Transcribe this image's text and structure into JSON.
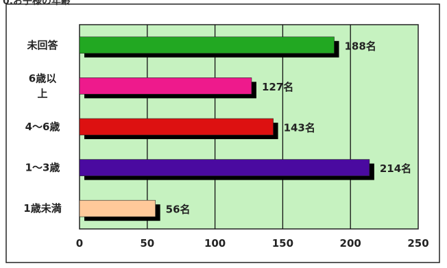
{
  "header": {
    "text": "0.お子様の年齢"
  },
  "chart_data": {
    "type": "bar",
    "orientation": "horizontal",
    "categories": [
      {
        "label": "未回答",
        "lines": [
          "未回答"
        ]
      },
      {
        "label": "6歳以上",
        "lines": [
          "6歳以",
          "上"
        ]
      },
      {
        "label": "4〜6歳",
        "lines": [
          "4〜6歳"
        ]
      },
      {
        "label": "1〜3歳",
        "lines": [
          "1〜3歳"
        ]
      },
      {
        "label": "1歳未満",
        "lines": [
          "1歳未満"
        ]
      }
    ],
    "values": [
      188,
      127,
      143,
      214,
      56
    ],
    "data_labels": [
      "188名",
      "127名",
      "143名",
      "214名",
      "56名"
    ],
    "bar_colors": [
      "#22a822",
      "#ee1a8c",
      "#dd1111",
      "#4a0aa0",
      "#ffc99a"
    ],
    "shadow_color": "#000000",
    "plot_background": "#c6f2c0",
    "x_ticks": [
      "0",
      "50",
      "100",
      "150",
      "200",
      "250"
    ],
    "xlim": [
      0,
      250
    ],
    "grid": true,
    "legend": false
  }
}
